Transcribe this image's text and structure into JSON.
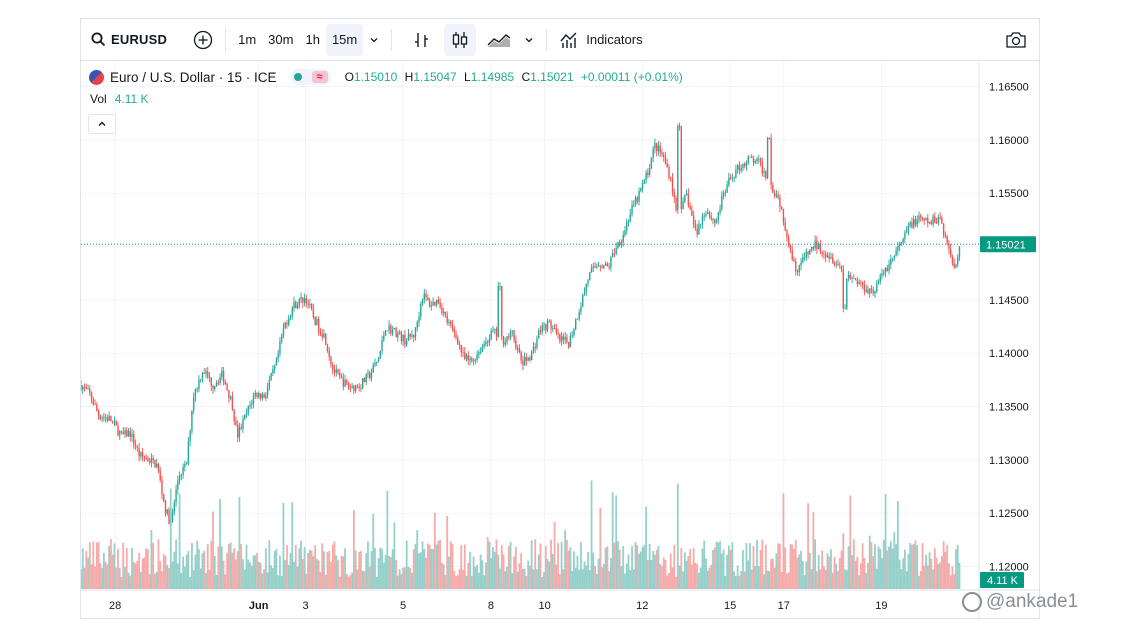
{
  "toolbar": {
    "symbol": "EURUSD",
    "intervals": [
      "1m",
      "30m",
      "1h",
      "15m"
    ],
    "active_interval": "15m",
    "indicators_label": "Indicators"
  },
  "legend": {
    "title": "Euro / U.S. Dollar · 15 · ICE",
    "o_label": "O",
    "o_value": "1.15010",
    "h_label": "H",
    "h_value": "1.15047",
    "l_label": "L",
    "l_value": "1.14985",
    "c_label": "C",
    "c_value": "1.15021",
    "change": "+0.00011 (+0.01%)",
    "pill_icon": "≈"
  },
  "volume": {
    "label": "Vol",
    "value": "4.11 K",
    "axis_badge": "4.11 K"
  },
  "watermark": "@ankade1",
  "colors": {
    "up": "#26a69a",
    "down": "#ef5350",
    "vol_up": "#8bcbc5",
    "vol_down": "#f4a2a0",
    "accent": "#089981"
  },
  "chart_data": {
    "type": "candlestick",
    "symbol": "EURUSD",
    "interval": "15",
    "last_price": 1.15021,
    "last_price_label": "1.15021",
    "ylim": [
      1.1178,
      1.1673
    ],
    "y_ticks": [
      "1.16500",
      "1.16000",
      "1.15500",
      "1.15000",
      "1.14500",
      "1.14000",
      "1.13500",
      "1.13000",
      "1.12500",
      "1.12000"
    ],
    "x_ticks": [
      {
        "label": "28",
        "day": 0.35
      },
      {
        "label": "Jun",
        "day": 1.82
      },
      {
        "label": "3",
        "day": 2.3
      },
      {
        "label": "5",
        "day": 3.3
      },
      {
        "label": "8",
        "day": 4.2
      },
      {
        "label": "10",
        "day": 4.75
      },
      {
        "label": "12",
        "day": 5.75
      },
      {
        "label": "15",
        "day": 6.65
      },
      {
        "label": "17",
        "day": 7.2
      },
      {
        "label": "19",
        "day": 8.2
      }
    ],
    "x_days": 9.2,
    "path": [
      [
        0.0,
        1.137
      ],
      [
        0.1,
        1.136
      ],
      [
        0.18,
        1.1342
      ],
      [
        0.3,
        1.1338
      ],
      [
        0.42,
        1.1322
      ],
      [
        0.5,
        1.1326
      ],
      [
        0.6,
        1.1304
      ],
      [
        0.7,
        1.13
      ],
      [
        0.78,
        1.1295
      ],
      [
        0.86,
        1.1255
      ],
      [
        0.92,
        1.124
      ],
      [
        1.0,
        1.1285
      ],
      [
        1.08,
        1.1295
      ],
      [
        1.15,
        1.136
      ],
      [
        1.25,
        1.1385
      ],
      [
        1.35,
        1.137
      ],
      [
        1.45,
        1.138
      ],
      [
        1.55,
        1.1352
      ],
      [
        1.6,
        1.1322
      ],
      [
        1.68,
        1.134
      ],
      [
        1.78,
        1.1362
      ],
      [
        1.88,
        1.136
      ],
      [
        2.0,
        1.139
      ],
      [
        2.08,
        1.1425
      ],
      [
        2.18,
        1.1445
      ],
      [
        2.3,
        1.1452
      ],
      [
        2.4,
        1.143
      ],
      [
        2.5,
        1.1415
      ],
      [
        2.58,
        1.1385
      ],
      [
        2.66,
        1.1375
      ],
      [
        2.75,
        1.1368
      ],
      [
        2.86,
        1.137
      ],
      [
        2.96,
        1.138
      ],
      [
        3.05,
        1.1395
      ],
      [
        3.12,
        1.1425
      ],
      [
        3.22,
        1.142
      ],
      [
        3.32,
        1.1412
      ],
      [
        3.42,
        1.1418
      ],
      [
        3.5,
        1.1455
      ],
      [
        3.58,
        1.1445
      ],
      [
        3.66,
        1.145
      ],
      [
        3.75,
        1.143
      ],
      [
        3.85,
        1.1415
      ],
      [
        3.92,
        1.1395
      ],
      [
        4.0,
        1.1392
      ],
      [
        4.1,
        1.1405
      ],
      [
        4.22,
        1.142
      ],
      [
        4.32,
        1.1412
      ],
      [
        4.42,
        1.1418
      ],
      [
        4.52,
        1.139
      ],
      [
        4.62,
        1.14
      ],
      [
        4.7,
        1.1422
      ],
      [
        4.8,
        1.1428
      ],
      [
        4.9,
        1.1412
      ],
      [
        5.0,
        1.141
      ],
      [
        5.1,
        1.144
      ],
      [
        5.2,
        1.1472
      ],
      [
        5.3,
        1.1485
      ],
      [
        5.4,
        1.148
      ],
      [
        5.48,
        1.15
      ],
      [
        5.55,
        1.151
      ],
      [
        5.62,
        1.153
      ],
      [
        5.7,
        1.1545
      ],
      [
        5.8,
        1.1568
      ],
      [
        5.88,
        1.1595
      ],
      [
        5.96,
        1.1585
      ],
      [
        6.04,
        1.1565
      ],
      [
        6.12,
        1.152
      ],
      [
        6.2,
        1.155
      ],
      [
        6.3,
        1.1512
      ],
      [
        6.4,
        1.1535
      ],
      [
        6.5,
        1.1522
      ],
      [
        6.58,
        1.1548
      ],
      [
        6.66,
        1.1565
      ],
      [
        6.75,
        1.1575
      ],
      [
        6.85,
        1.1582
      ],
      [
        6.95,
        1.1578
      ],
      [
        7.05,
        1.156
      ],
      [
        7.15,
        1.1545
      ],
      [
        7.25,
        1.1505
      ],
      [
        7.32,
        1.1478
      ],
      [
        7.42,
        1.149
      ],
      [
        7.52,
        1.1502
      ],
      [
        7.62,
        1.1495
      ],
      [
        7.72,
        1.1488
      ],
      [
        7.82,
        1.1475
      ],
      [
        7.92,
        1.147
      ],
      [
        8.02,
        1.1462
      ],
      [
        8.12,
        1.1458
      ],
      [
        8.22,
        1.1475
      ],
      [
        8.32,
        1.149
      ],
      [
        8.42,
        1.1505
      ],
      [
        8.5,
        1.1522
      ],
      [
        8.6,
        1.1525
      ],
      [
        8.7,
        1.1522
      ],
      [
        8.8,
        1.1528
      ],
      [
        8.88,
        1.15
      ],
      [
        8.95,
        1.148
      ],
      [
        9.0,
        1.1502
      ]
    ],
    "spikes": [
      [
        4.28,
        1.1463,
        1.1493
      ],
      [
        6.12,
        1.1613,
        1.1572
      ],
      [
        7.04,
        1.1602,
        1.157
      ],
      [
        7.82,
        1.1442,
        1.146
      ]
    ]
  }
}
